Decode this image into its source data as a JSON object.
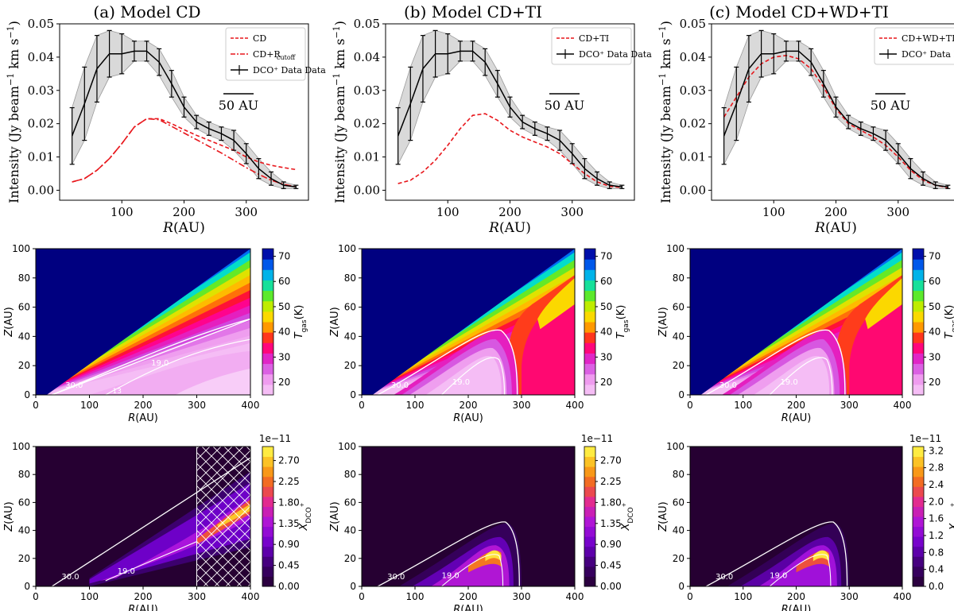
{
  "chart_data": [
    {
      "type": "line",
      "panel": "a-profile",
      "title": "(a) Model CD",
      "xlabel": "R(AU)",
      "ylabel": "Intensity (Jy beam⁻¹ km s⁻¹)",
      "xlim": [
        0,
        400
      ],
      "ylim": [
        -0.003,
        0.05
      ],
      "xticks": [
        100,
        200,
        300
      ],
      "yticks": [
        0.0,
        0.01,
        0.02,
        0.03,
        0.04,
        0.05
      ],
      "ytick_labels": [
        "0.00",
        "0.01",
        "0.02",
        "0.03",
        "0.04",
        "0.05"
      ],
      "scale_bar_label": "50 AU",
      "data": {
        "name": "DCO⁺ Data",
        "x": [
          20,
          40,
          60,
          80,
          100,
          120,
          140,
          160,
          180,
          200,
          220,
          240,
          260,
          280,
          300,
          320,
          340,
          360,
          380
        ],
        "y": [
          0.0163,
          0.026,
          0.0365,
          0.041,
          0.041,
          0.0418,
          0.0418,
          0.0385,
          0.032,
          0.025,
          0.0205,
          0.0185,
          0.017,
          0.015,
          0.011,
          0.0065,
          0.0035,
          0.0015,
          0.001
        ],
        "err": [
          0.0085,
          0.011,
          0.01,
          0.007,
          0.006,
          0.003,
          0.003,
          0.004,
          0.004,
          0.003,
          0.002,
          0.002,
          0.002,
          0.003,
          0.003,
          0.003,
          0.002,
          0.001,
          0.0005
        ]
      },
      "series": [
        {
          "name": "CD",
          "style": "dashed",
          "color": "#e8161b",
          "x": [
            20,
            40,
            60,
            80,
            100,
            120,
            140,
            160,
            180,
            200,
            220,
            240,
            260,
            280,
            300,
            320,
            340,
            360,
            380
          ],
          "y": [
            0.0025,
            0.0035,
            0.006,
            0.0095,
            0.014,
            0.019,
            0.0215,
            0.0215,
            0.02,
            0.0182,
            0.0165,
            0.015,
            0.0135,
            0.012,
            0.01,
            0.0085,
            0.0075,
            0.0068,
            0.0062
          ]
        },
        {
          "name": "CD+R_cutoff",
          "label_main": "CD+R",
          "label_sub": "cutoff",
          "style": "dashdot",
          "color": "#e8161b",
          "x": [
            20,
            40,
            60,
            80,
            100,
            120,
            140,
            160,
            180,
            200,
            220,
            240,
            260,
            280,
            300,
            320,
            340,
            360,
            380
          ],
          "y": [
            0.0025,
            0.0035,
            0.006,
            0.0095,
            0.014,
            0.019,
            0.0215,
            0.0212,
            0.0192,
            0.0172,
            0.0152,
            0.0132,
            0.0112,
            0.009,
            0.0068,
            0.0048,
            0.003,
            0.0018,
            0.001
          ]
        }
      ]
    },
    {
      "type": "line",
      "panel": "b-profile",
      "title": "(b) Model CD+TI",
      "xlabel": "R(AU)",
      "ylabel": "Intensity (Jy beam⁻¹ km s⁻¹)",
      "xlim": [
        0,
        400
      ],
      "ylim": [
        -0.003,
        0.05
      ],
      "xticks": [
        100,
        200,
        300
      ],
      "yticks": [
        0.0,
        0.01,
        0.02,
        0.03,
        0.04,
        0.05
      ],
      "ytick_labels": [
        "0.00",
        "0.01",
        "0.02",
        "0.03",
        "0.04",
        "0.05"
      ],
      "scale_bar_label": "50 AU",
      "data": {
        "name": "DCO⁺ Data",
        "x": [
          20,
          40,
          60,
          80,
          100,
          120,
          140,
          160,
          180,
          200,
          220,
          240,
          260,
          280,
          300,
          320,
          340,
          360,
          380
        ],
        "y": [
          0.0163,
          0.026,
          0.0365,
          0.041,
          0.041,
          0.0418,
          0.0418,
          0.0385,
          0.032,
          0.025,
          0.0205,
          0.0185,
          0.017,
          0.015,
          0.011,
          0.0065,
          0.0035,
          0.0015,
          0.001
        ],
        "err": [
          0.0085,
          0.011,
          0.01,
          0.007,
          0.006,
          0.003,
          0.003,
          0.004,
          0.004,
          0.003,
          0.002,
          0.002,
          0.002,
          0.003,
          0.003,
          0.003,
          0.002,
          0.001,
          0.0005
        ]
      },
      "series": [
        {
          "name": "CD+TI",
          "style": "dashed",
          "color": "#e8161b",
          "x": [
            20,
            40,
            60,
            80,
            100,
            120,
            140,
            160,
            180,
            200,
            220,
            240,
            260,
            280,
            300,
            320,
            340,
            360,
            380
          ],
          "y": [
            0.002,
            0.003,
            0.0055,
            0.009,
            0.0135,
            0.0185,
            0.0225,
            0.023,
            0.021,
            0.018,
            0.016,
            0.0145,
            0.013,
            0.011,
            0.008,
            0.005,
            0.0025,
            0.0012,
            0.0008
          ]
        }
      ]
    },
    {
      "type": "line",
      "panel": "c-profile",
      "title": "(c) Model CD+WD+TI",
      "xlabel": "R(AU)",
      "ylabel": "Intensity (Jy beam⁻¹ km s⁻¹)",
      "xlim": [
        0,
        400
      ],
      "ylim": [
        -0.003,
        0.05
      ],
      "xticks": [
        100,
        200,
        300
      ],
      "yticks": [
        0.0,
        0.01,
        0.02,
        0.03,
        0.04,
        0.05
      ],
      "ytick_labels": [
        "0.00",
        "0.01",
        "0.02",
        "0.03",
        "0.04",
        "0.05"
      ],
      "scale_bar_label": "50 AU",
      "data": {
        "name": "DCO⁺ Data",
        "x": [
          20,
          40,
          60,
          80,
          100,
          120,
          140,
          160,
          180,
          200,
          220,
          240,
          260,
          280,
          300,
          320,
          340,
          360,
          380
        ],
        "y": [
          0.0163,
          0.026,
          0.0365,
          0.041,
          0.041,
          0.0418,
          0.0418,
          0.0385,
          0.032,
          0.025,
          0.0205,
          0.0185,
          0.017,
          0.015,
          0.011,
          0.0065,
          0.0035,
          0.0015,
          0.001
        ],
        "err": [
          0.0085,
          0.011,
          0.01,
          0.007,
          0.006,
          0.003,
          0.003,
          0.004,
          0.004,
          0.003,
          0.002,
          0.002,
          0.002,
          0.003,
          0.003,
          0.003,
          0.002,
          0.001,
          0.0005
        ]
      },
      "series": [
        {
          "name": "CD+WD+TI",
          "style": "dashed",
          "color": "#e8161b",
          "x": [
            20,
            40,
            60,
            80,
            100,
            120,
            140,
            160,
            180,
            200,
            220,
            240,
            260,
            280,
            300,
            320,
            340,
            360,
            380
          ],
          "y": [
            0.022,
            0.028,
            0.034,
            0.038,
            0.04,
            0.0405,
            0.0395,
            0.0365,
            0.031,
            0.0245,
            0.02,
            0.018,
            0.016,
            0.0135,
            0.01,
            0.006,
            0.003,
            0.0015,
            0.0008
          ]
        }
      ]
    },
    {
      "type": "heatmap",
      "panel": "a-temperature",
      "quantity": "Tgas",
      "xlabel": "R(AU)",
      "ylabel": "Z(AU)",
      "xlim": [
        0,
        400
      ],
      "ylim": [
        0,
        100
      ],
      "xticks": [
        0,
        100,
        200,
        300,
        400
      ],
      "yticks": [
        0,
        20,
        40,
        60,
        80,
        100
      ],
      "colorbar_label": "T_gas(K)",
      "colorbar_ticks": [
        20,
        30,
        40,
        50,
        60,
        70
      ],
      "colorbar_range": [
        15,
        73
      ],
      "contour_labels": [
        "30.0",
        "19.0",
        "13"
      ],
      "thermal_inversion": false
    },
    {
      "type": "heatmap",
      "panel": "b-temperature",
      "quantity": "Tgas",
      "xlabel": "R(AU)",
      "ylabel": "Z(AU)",
      "xlim": [
        0,
        400
      ],
      "ylim": [
        0,
        100
      ],
      "xticks": [
        0,
        100,
        200,
        300,
        400
      ],
      "yticks": [
        0,
        20,
        40,
        60,
        80,
        100
      ],
      "colorbar_label": "T_gas(K)",
      "colorbar_ticks": [
        20,
        30,
        40,
        50,
        60,
        70
      ],
      "colorbar_range": [
        15,
        73
      ],
      "contour_labels": [
        "30.0",
        "19.0"
      ],
      "thermal_inversion": true
    },
    {
      "type": "heatmap",
      "panel": "c-temperature",
      "quantity": "Tgas",
      "xlabel": "R(AU)",
      "ylabel": "Z(AU)",
      "xlim": [
        0,
        400
      ],
      "ylim": [
        0,
        100
      ],
      "xticks": [
        0,
        100,
        200,
        300,
        400
      ],
      "yticks": [
        0,
        20,
        40,
        60,
        80,
        100
      ],
      "colorbar_label": "T_gas(K)",
      "colorbar_ticks": [
        20,
        30,
        40,
        50,
        60,
        70
      ],
      "colorbar_range": [
        15,
        73
      ],
      "contour_labels": [
        "30.0",
        "19.0"
      ],
      "thermal_inversion": true
    },
    {
      "type": "heatmap",
      "panel": "a-abundance",
      "quantity": "X_DCO+",
      "xlabel": "R(AU)",
      "ylabel": "Z(AU)",
      "xlim": [
        0,
        400
      ],
      "ylim": [
        0,
        100
      ],
      "xticks": [
        0,
        100,
        200,
        300,
        400
      ],
      "yticks": [
        0,
        20,
        40,
        60,
        80,
        100
      ],
      "colorbar_label": "X_DCO+",
      "colorbar_multiplier": "1e−11",
      "colorbar_ticks": [
        0.0,
        0.45,
        0.9,
        1.35,
        1.8,
        2.25,
        2.7
      ],
      "colorbar_tick_labels": [
        "0.00",
        "0.45",
        "0.90",
        "1.35",
        "1.80",
        "2.25",
        "2.70"
      ],
      "colorbar_range": [
        0,
        3.0
      ],
      "contour_labels": [
        "30.0",
        "19.0"
      ],
      "hatched_region_R": [
        300,
        400
      ],
      "layer": "wedge"
    },
    {
      "type": "heatmap",
      "panel": "b-abundance",
      "quantity": "X_DCO+",
      "xlabel": "R(AU)",
      "ylabel": "Z(AU)",
      "xlim": [
        0,
        400
      ],
      "ylim": [
        0,
        100
      ],
      "xticks": [
        0,
        100,
        200,
        300,
        400
      ],
      "yticks": [
        0,
        20,
        40,
        60,
        80,
        100
      ],
      "colorbar_label": "X_DCO+",
      "colorbar_multiplier": "1e−11",
      "colorbar_ticks": [
        0.0,
        0.45,
        0.9,
        1.35,
        1.8,
        2.25,
        2.7
      ],
      "colorbar_tick_labels": [
        "0.00",
        "0.45",
        "0.90",
        "1.35",
        "1.80",
        "2.25",
        "2.70"
      ],
      "colorbar_range": [
        0,
        3.0
      ],
      "contour_labels": [
        "30.0",
        "19.0"
      ],
      "layer": "arch"
    },
    {
      "type": "heatmap",
      "panel": "c-abundance",
      "quantity": "X_DCO+",
      "xlabel": "R(AU)",
      "ylabel": "Z(AU)",
      "xlim": [
        0,
        400
      ],
      "ylim": [
        0,
        100
      ],
      "xticks": [
        0,
        100,
        200,
        300,
        400
      ],
      "yticks": [
        0,
        20,
        40,
        60,
        80,
        100
      ],
      "colorbar_label": "X_DCO+",
      "colorbar_multiplier": "1e−11",
      "colorbar_ticks": [
        0.0,
        0.4,
        0.8,
        1.2,
        1.6,
        2.0,
        2.4,
        2.8,
        3.2
      ],
      "colorbar_tick_labels": [
        "0.0",
        "0.4",
        "0.8",
        "1.2",
        "1.6",
        "2.0",
        "2.4",
        "2.8",
        "3.2"
      ],
      "colorbar_range": [
        0,
        3.3
      ],
      "contour_labels": [
        "30.0",
        "19.0"
      ],
      "layer": "arch"
    }
  ]
}
